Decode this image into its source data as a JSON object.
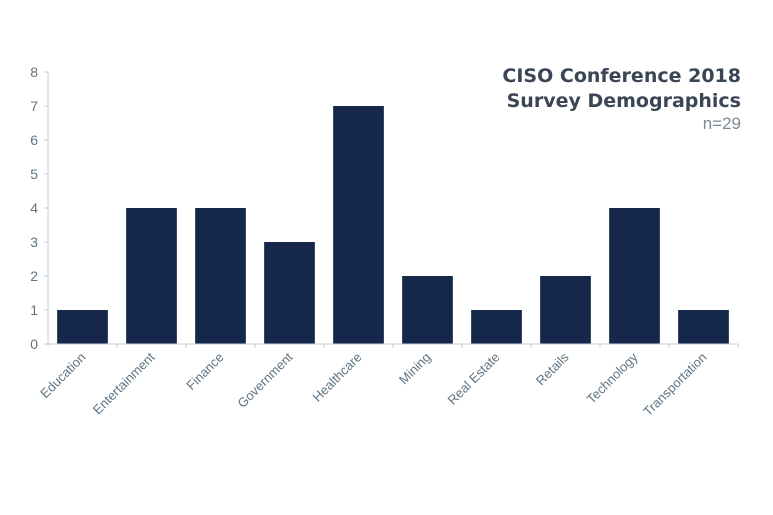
{
  "chart_data": {
    "type": "bar",
    "title": [
      "CISO Conference 2018",
      "Survey Demographics"
    ],
    "subtitle": "n=29",
    "categories": [
      "Education",
      "Entertainment",
      "Finance",
      "Government",
      "Healthcare",
      "Mining",
      "Real Estate",
      "Retails",
      "Technology",
      "Transportation"
    ],
    "values": [
      1,
      4,
      4,
      3,
      7,
      2,
      1,
      2,
      4,
      1
    ],
    "ylim": [
      0,
      8
    ],
    "yticks": [
      0,
      1,
      2,
      3,
      4,
      5,
      6,
      7,
      8
    ],
    "grid": false,
    "bar_color": "#15284b",
    "axis_color": "#c8ced4",
    "label_color": "#5f7483",
    "title_color": "#3a4556",
    "subtitle_color": "#7d8a95"
  }
}
